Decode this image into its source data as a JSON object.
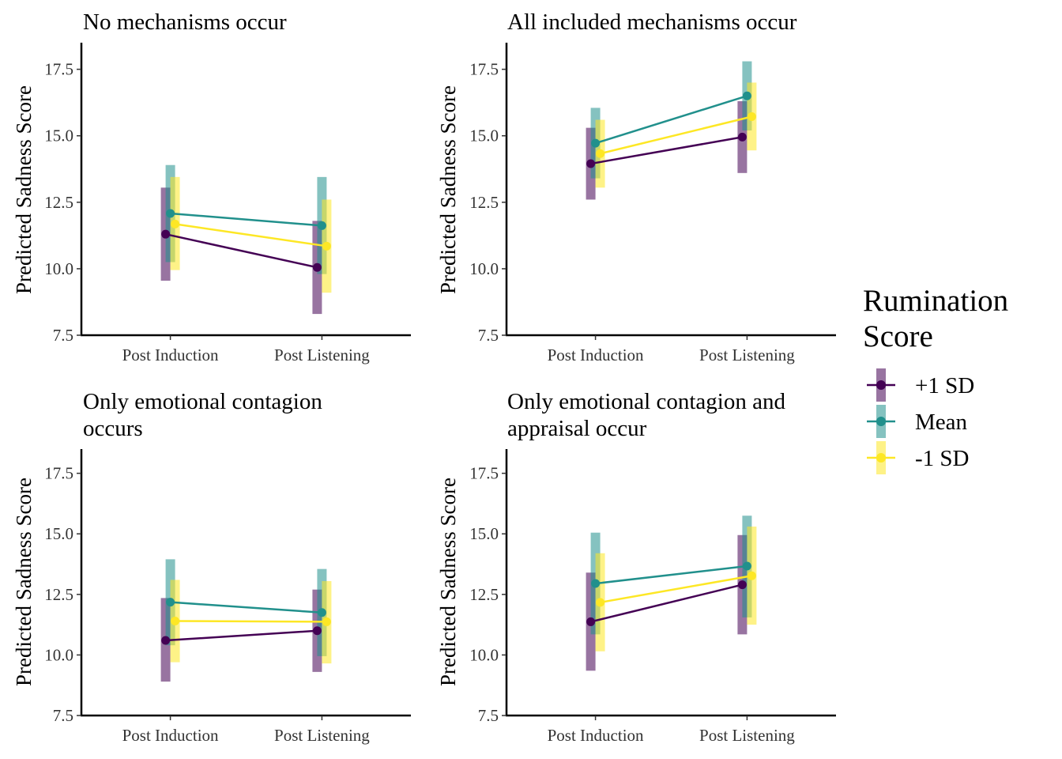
{
  "legend": {
    "title_lines": [
      "Rumination",
      "Score"
    ],
    "entries": [
      {
        "label": "+1 SD",
        "color": "#440154"
      },
      {
        "label": "Mean",
        "color": "#21908C"
      },
      {
        "label": "-1 SD",
        "color": "#FDE725"
      }
    ]
  },
  "chart_data": [
    {
      "type": "line",
      "title_lines": [
        "No mechanisms occur"
      ],
      "ylabel": "Predicted Sadness Score",
      "categories": [
        "Post Induction",
        "Post Listening"
      ],
      "ylim": [
        7.5,
        18.5
      ],
      "yticks": [
        "7.5",
        "10.0",
        "12.5",
        "15.0",
        "17.5"
      ],
      "series": [
        {
          "name": "+1 SD",
          "values": [
            11.3,
            10.05
          ],
          "lower": [
            9.55,
            8.3
          ],
          "upper": [
            13.05,
            11.8
          ]
        },
        {
          "name": "Mean",
          "values": [
            12.08,
            11.62
          ],
          "lower": [
            10.25,
            9.8
          ],
          "upper": [
            13.9,
            13.45
          ]
        },
        {
          "name": "-1 SD",
          "values": [
            11.68,
            10.85
          ],
          "lower": [
            9.95,
            9.1
          ],
          "upper": [
            13.45,
            12.6
          ]
        }
      ]
    },
    {
      "type": "line",
      "title_lines": [
        "All included mechanisms occur"
      ],
      "ylabel": "Predicted Sadness Score",
      "categories": [
        "Post Induction",
        "Post Listening"
      ],
      "ylim": [
        7.5,
        18.5
      ],
      "yticks": [
        "7.5",
        "10.0",
        "12.5",
        "15.0",
        "17.5"
      ],
      "series": [
        {
          "name": "+1 SD",
          "values": [
            13.95,
            14.95
          ],
          "lower": [
            12.6,
            13.6
          ],
          "upper": [
            15.3,
            16.3
          ]
        },
        {
          "name": "Mean",
          "values": [
            14.72,
            16.5
          ],
          "lower": [
            13.4,
            15.2
          ],
          "upper": [
            16.05,
            17.8
          ]
        },
        {
          "name": "-1 SD",
          "values": [
            14.33,
            15.72
          ],
          "lower": [
            13.05,
            14.45
          ],
          "upper": [
            15.6,
            17.0
          ]
        }
      ]
    },
    {
      "type": "line",
      "title_lines": [
        "Only emotional contagion",
        "occurs"
      ],
      "ylabel": "Predicted Sadness Score",
      "categories": [
        "Post Induction",
        "Post Listening"
      ],
      "ylim": [
        7.5,
        18.5
      ],
      "yticks": [
        "7.5",
        "10.0",
        "12.5",
        "15.0",
        "17.5"
      ],
      "series": [
        {
          "name": "+1 SD",
          "values": [
            10.6,
            11.0
          ],
          "lower": [
            8.9,
            9.3
          ],
          "upper": [
            12.35,
            12.7
          ]
        },
        {
          "name": "Mean",
          "values": [
            12.18,
            11.75
          ],
          "lower": [
            10.4,
            9.95
          ],
          "upper": [
            13.95,
            13.55
          ]
        },
        {
          "name": "-1 SD",
          "values": [
            11.4,
            11.37
          ],
          "lower": [
            9.7,
            9.65
          ],
          "upper": [
            13.1,
            13.05
          ]
        }
      ]
    },
    {
      "type": "line",
      "title_lines": [
        "Only emotional contagion and",
        "appraisal occur"
      ],
      "ylabel": "Predicted Sadness Score",
      "categories": [
        "Post Induction",
        "Post Listening"
      ],
      "ylim": [
        7.5,
        18.5
      ],
      "yticks": [
        "7.5",
        "10.0",
        "12.5",
        "15.0",
        "17.5"
      ],
      "series": [
        {
          "name": "+1 SD",
          "values": [
            11.37,
            12.9
          ],
          "lower": [
            9.35,
            10.85
          ],
          "upper": [
            13.4,
            14.95
          ]
        },
        {
          "name": "Mean",
          "values": [
            12.95,
            13.67
          ],
          "lower": [
            10.85,
            11.55
          ],
          "upper": [
            15.05,
            15.75
          ]
        },
        {
          "name": "-1 SD",
          "values": [
            12.17,
            13.27
          ],
          "lower": [
            10.15,
            11.25
          ],
          "upper": [
            14.2,
            15.3
          ]
        }
      ]
    }
  ]
}
